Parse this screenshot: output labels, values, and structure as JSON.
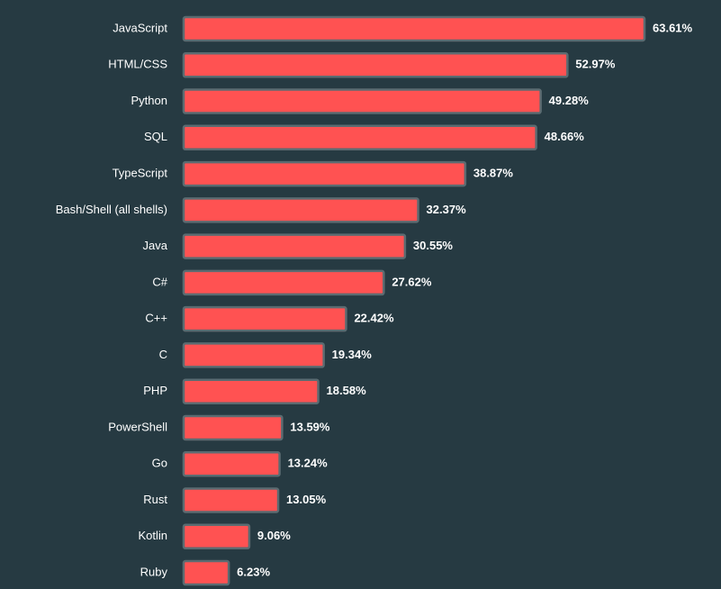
{
  "chart_data": {
    "type": "bar",
    "orientation": "horizontal",
    "categories": [
      "JavaScript",
      "HTML/CSS",
      "Python",
      "SQL",
      "TypeScript",
      "Bash/Shell (all shells)",
      "Java",
      "C#",
      "C++",
      "C",
      "PHP",
      "PowerShell",
      "Go",
      "Rust",
      "Kotlin",
      "Ruby"
    ],
    "values": [
      63.61,
      52.97,
      49.28,
      48.66,
      38.87,
      32.37,
      30.55,
      27.62,
      22.42,
      19.34,
      18.58,
      13.59,
      13.24,
      13.05,
      9.06,
      6.23
    ],
    "value_labels": [
      "63.61%",
      "52.97%",
      "49.28%",
      "48.66%",
      "38.87%",
      "32.37%",
      "30.55%",
      "27.62%",
      "22.42%",
      "19.34%",
      "18.58%",
      "13.59%",
      "13.24%",
      "13.05%",
      "9.06%",
      "6.23%"
    ],
    "xlim": [
      0,
      63.61
    ],
    "grid": false,
    "colors": {
      "bar": "#ff5252",
      "bar_border": "#5b6b71",
      "background": "#263a42",
      "text": "#ffffff"
    }
  }
}
